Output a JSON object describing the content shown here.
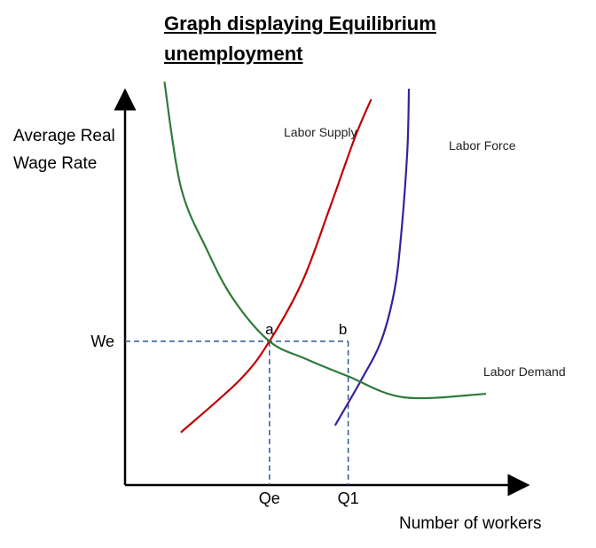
{
  "chart_data": {
    "type": "line",
    "title_line1": "Graph displaying  Equilibrium",
    "title_line2": "unemployment",
    "ylabel_line1": "Average Real",
    "ylabel_line2": "Wage Rate",
    "xlabel": "Number of workers",
    "xticks": [
      {
        "label": "Qe",
        "x": 4.4
      },
      {
        "label": "Q1",
        "x": 6.8
      }
    ],
    "yticks": [
      {
        "label": "We",
        "y": 4.1
      }
    ],
    "xlim": [
      0,
      12
    ],
    "ylim": [
      0,
      11
    ],
    "points": [
      {
        "label": "a",
        "x": 4.4,
        "y": 4.1
      },
      {
        "label": "b",
        "x": 6.8,
        "y": 4.1
      }
    ],
    "series": [
      {
        "name": "Labor Supply",
        "color": "#c00000",
        "x": [
          1.7,
          3.5,
          4.4,
          5.4,
          6.2,
          7.0,
          7.5
        ],
        "y": [
          1.5,
          3.0,
          4.1,
          5.8,
          7.8,
          9.9,
          11.0
        ]
      },
      {
        "name": "Labor Force",
        "color": "#3a1f9a",
        "x": [
          6.4,
          7.2,
          7.8,
          8.2,
          8.4,
          8.6,
          8.65
        ],
        "y": [
          1.7,
          3.0,
          4.1,
          5.5,
          7.0,
          9.5,
          11.3
        ]
      },
      {
        "name": "Labor Demand",
        "color": "#2e7a3a",
        "x": [
          1.2,
          1.7,
          2.5,
          3.3,
          4.4,
          5.5,
          6.8,
          8.5,
          11.0
        ],
        "y": [
          11.5,
          8.5,
          6.7,
          5.3,
          4.1,
          3.6,
          3.1,
          2.5,
          2.6
        ]
      }
    ]
  }
}
